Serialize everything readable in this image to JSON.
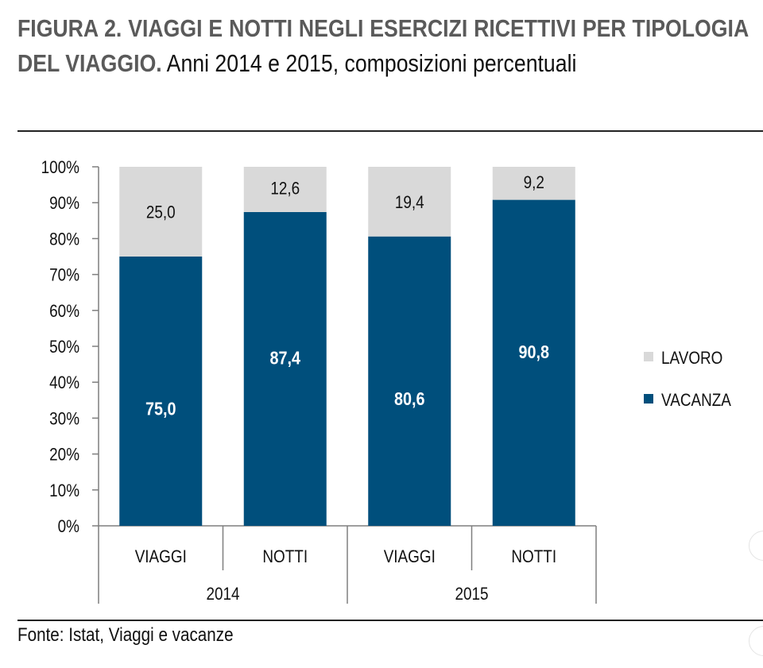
{
  "header": {
    "title_bold": "FIGURA 2. VIAGGI E NOTTI  NEGLI ESERCIZI RICETTIVI PER TIPOLOGIA  DEL  VIAGGIO",
    "title_dot": ".",
    "title_rest": " Anni 2014 e 2015, composizioni percentuali"
  },
  "footer": {
    "source": "Fonte: Istat, Viaggi e vacanze"
  },
  "chart_data": {
    "type": "bar",
    "stacked": true,
    "title": "",
    "xlabel": "",
    "ylabel": "",
    "ylim": [
      0,
      100
    ],
    "y_ticks": [
      "0%",
      "10%",
      "20%",
      "30%",
      "40%",
      "50%",
      "60%",
      "70%",
      "80%",
      "90%",
      "100%"
    ],
    "categories": [
      "VIAGGI",
      "NOTTI",
      "VIAGGI",
      "NOTTI"
    ],
    "groups": [
      {
        "label": "2014",
        "span": [
          0,
          1
        ]
      },
      {
        "label": "2015",
        "span": [
          2,
          3
        ]
      }
    ],
    "series": [
      {
        "name": "VACANZA",
        "color": "#004f7c",
        "values": [
          75.0,
          87.4,
          80.6,
          90.8
        ],
        "labels": [
          "75,0",
          "87,4",
          "80,6",
          "90,8"
        ]
      },
      {
        "name": "LAVORO",
        "color": "#d9d9d9",
        "values": [
          25.0,
          12.6,
          19.4,
          9.2
        ],
        "labels": [
          "25,0",
          "12,6",
          "19,4",
          "9,2"
        ]
      }
    ],
    "legend": {
      "placement": "right",
      "order": [
        "LAVORO",
        "VACANZA"
      ]
    },
    "grid": false
  }
}
